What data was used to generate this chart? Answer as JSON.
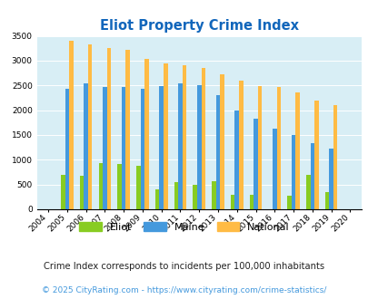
{
  "title": "Eliot Property Crime Index",
  "years": [
    "2004",
    "2005",
    "2006",
    "2007",
    "2008",
    "2009",
    "2010",
    "2011",
    "2012",
    "2013",
    "2014",
    "2015",
    "2016",
    "2017",
    "2018",
    "2019",
    "2020"
  ],
  "eliot": [
    0,
    700,
    680,
    940,
    920,
    870,
    400,
    540,
    490,
    570,
    300,
    300,
    0,
    280,
    700,
    350,
    0
  ],
  "maine": [
    0,
    2430,
    2540,
    2460,
    2470,
    2430,
    2490,
    2550,
    2510,
    2310,
    1990,
    1830,
    1630,
    1500,
    1340,
    1230,
    0
  ],
  "national": [
    0,
    3410,
    3330,
    3260,
    3210,
    3030,
    2940,
    2900,
    2860,
    2730,
    2590,
    2490,
    2470,
    2360,
    2200,
    2110,
    0
  ],
  "eliot_color": "#88cc22",
  "maine_color": "#4499dd",
  "national_color": "#ffbb44",
  "bg_color": "#d8eef5",
  "ylim": [
    0,
    3500
  ],
  "yticks": [
    0,
    500,
    1000,
    1500,
    2000,
    2500,
    3000,
    3500
  ],
  "bar_width": 0.22,
  "subtitle": "Crime Index corresponds to incidents per 100,000 inhabitants",
  "footer": "© 2025 CityRating.com - https://www.cityrating.com/crime-statistics/",
  "title_color": "#1166bb",
  "subtitle_color": "#222222",
  "footer_color": "#4499dd",
  "grid_color": "#c0d8e8"
}
